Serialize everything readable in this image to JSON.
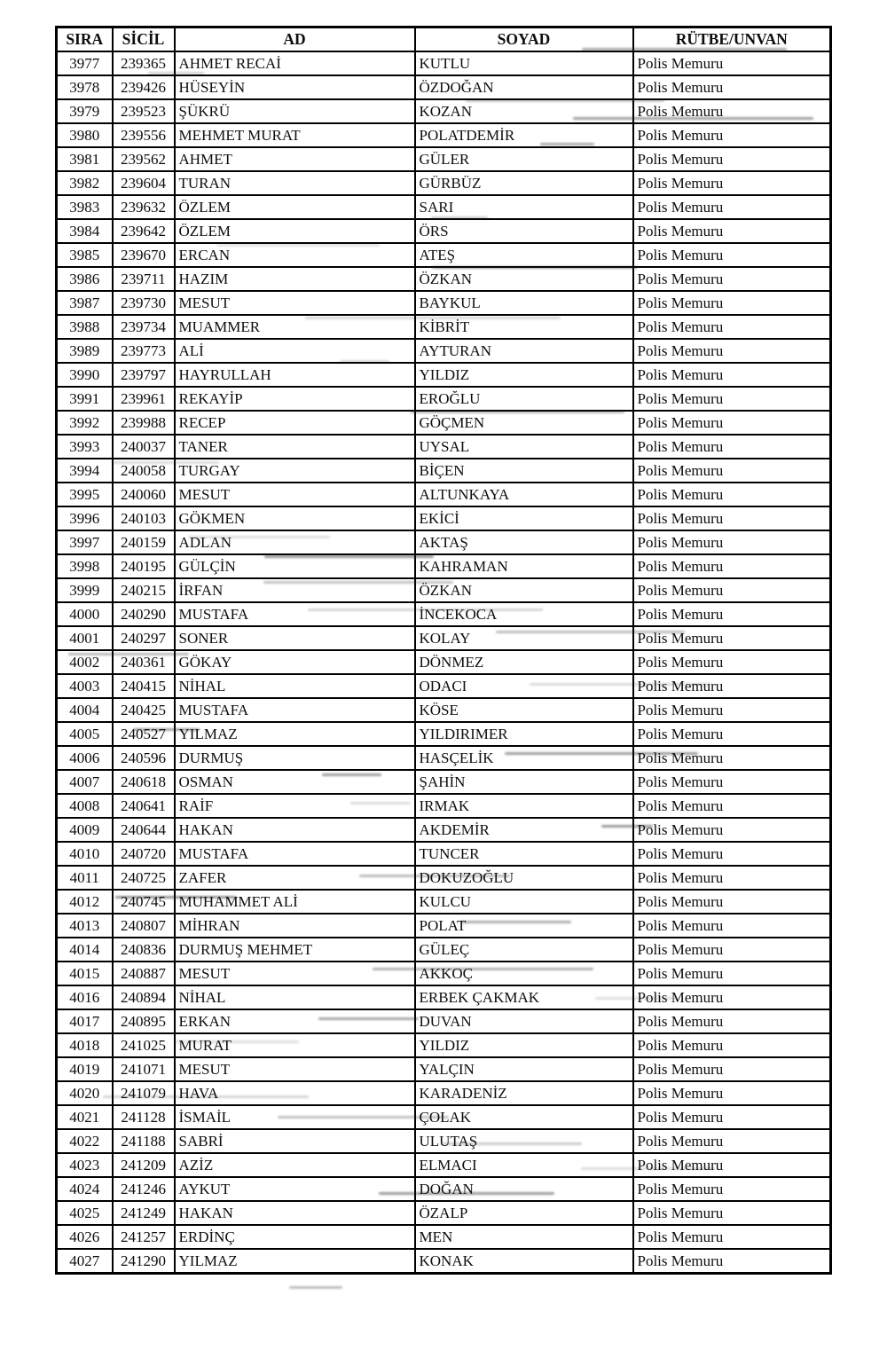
{
  "colors": {
    "border": "#000000",
    "text": "#0d0d0d",
    "background": "#ffffff"
  },
  "table": {
    "headers": [
      "SIRA",
      "SİCİL",
      "AD",
      "SOYAD",
      "RÜTBE/UNVAN"
    ],
    "rows": [
      [
        "3977",
        "239365",
        "AHMET RECAİ",
        "KUTLU",
        "Polis Memuru"
      ],
      [
        "3978",
        "239426",
        "HÜSEYİN",
        "ÖZDOĞAN",
        "Polis Memuru"
      ],
      [
        "3979",
        "239523",
        "ŞÜKRÜ",
        "KOZAN",
        "Polis Memuru"
      ],
      [
        "3980",
        "239556",
        "MEHMET MURAT",
        "POLATDEMİR",
        "Polis Memuru"
      ],
      [
        "3981",
        "239562",
        "AHMET",
        "GÜLER",
        "Polis Memuru"
      ],
      [
        "3982",
        "239604",
        "TURAN",
        "GÜRBÜZ",
        "Polis Memuru"
      ],
      [
        "3983",
        "239632",
        "ÖZLEM",
        "SARI",
        "Polis Memuru"
      ],
      [
        "3984",
        "239642",
        "ÖZLEM",
        "ÖRS",
        "Polis Memuru"
      ],
      [
        "3985",
        "239670",
        "ERCAN",
        "ATEŞ",
        "Polis Memuru"
      ],
      [
        "3986",
        "239711",
        "HAZIM",
        "ÖZKAN",
        "Polis Memuru"
      ],
      [
        "3987",
        "239730",
        "MESUT",
        "BAYKUL",
        "Polis Memuru"
      ],
      [
        "3988",
        "239734",
        "MUAMMER",
        "KİBRİT",
        "Polis Memuru"
      ],
      [
        "3989",
        "239773",
        "ALİ",
        "AYTURAN",
        "Polis Memuru"
      ],
      [
        "3990",
        "239797",
        "HAYRULLAH",
        "YILDIZ",
        "Polis Memuru"
      ],
      [
        "3991",
        "239961",
        "REKAYİP",
        "EROĞLU",
        "Polis Memuru"
      ],
      [
        "3992",
        "239988",
        "RECEP",
        "GÖÇMEN",
        "Polis Memuru"
      ],
      [
        "3993",
        "240037",
        "TANER",
        "UYSAL",
        "Polis Memuru"
      ],
      [
        "3994",
        "240058",
        "TURGAY",
        "BİÇEN",
        "Polis Memuru"
      ],
      [
        "3995",
        "240060",
        "MESUT",
        "ALTUNKAYA",
        "Polis Memuru"
      ],
      [
        "3996",
        "240103",
        "GÖKMEN",
        "EKİCİ",
        "Polis Memuru"
      ],
      [
        "3997",
        "240159",
        "ADLAN",
        "AKTAŞ",
        "Polis Memuru"
      ],
      [
        "3998",
        "240195",
        "GÜLÇİN",
        "KAHRAMAN",
        "Polis Memuru"
      ],
      [
        "3999",
        "240215",
        "İRFAN",
        "ÖZKAN",
        "Polis Memuru"
      ],
      [
        "4000",
        "240290",
        "MUSTAFA",
        "İNCEKOCA",
        "Polis Memuru"
      ],
      [
        "4001",
        "240297",
        "SONER",
        "KOLAY",
        "Polis Memuru"
      ],
      [
        "4002",
        "240361",
        "GÖKAY",
        "DÖNMEZ",
        "Polis Memuru"
      ],
      [
        "4003",
        "240415",
        "NİHAL",
        "ODACI",
        "Polis Memuru"
      ],
      [
        "4004",
        "240425",
        "MUSTAFA",
        "KÖSE",
        "Polis Memuru"
      ],
      [
        "4005",
        "240527",
        "YILMAZ",
        "YILDIRIMER",
        "Polis Memuru"
      ],
      [
        "4006",
        "240596",
        "DURMUŞ",
        "HASÇELİK",
        "Polis Memuru"
      ],
      [
        "4007",
        "240618",
        "OSMAN",
        "ŞAHİN",
        "Polis Memuru"
      ],
      [
        "4008",
        "240641",
        "RAİF",
        "IRMAK",
        "Polis Memuru"
      ],
      [
        "4009",
        "240644",
        "HAKAN",
        "AKDEMİR",
        "Polis Memuru"
      ],
      [
        "4010",
        "240720",
        "MUSTAFA",
        "TUNCER",
        "Polis Memuru"
      ],
      [
        "4011",
        "240725",
        "ZAFER",
        "DOKUZOĞLU",
        "Polis Memuru"
      ],
      [
        "4012",
        "240745",
        "MUHAMMET ALİ",
        "KULCU",
        "Polis Memuru"
      ],
      [
        "4013",
        "240807",
        "MİHRAN",
        "POLAT",
        "Polis Memuru"
      ],
      [
        "4014",
        "240836",
        "DURMUŞ MEHMET",
        "GÜLEÇ",
        "Polis Memuru"
      ],
      [
        "4015",
        "240887",
        "MESUT",
        "AKKOÇ",
        "Polis Memuru"
      ],
      [
        "4016",
        "240894",
        "NİHAL",
        "ERBEK ÇAKMAK",
        "Polis Memuru"
      ],
      [
        "4017",
        "240895",
        "ERKAN",
        "DUVAN",
        "Polis Memuru"
      ],
      [
        "4018",
        "241025",
        "MURAT",
        "YILDIZ",
        "Polis Memuru"
      ],
      [
        "4019",
        "241071",
        "MESUT",
        "YALÇIN",
        "Polis Memuru"
      ],
      [
        "4020",
        "241079",
        "HAVA",
        "KARADENİZ",
        "Polis Memuru"
      ],
      [
        "4021",
        "241128",
        "İSMAİL",
        "ÇOLAK",
        "Polis Memuru"
      ],
      [
        "4022",
        "241188",
        "SABRİ",
        "ULUTAŞ",
        "Polis Memuru"
      ],
      [
        "4023",
        "241209",
        "AZİZ",
        "ELMACI",
        "Polis Memuru"
      ],
      [
        "4024",
        "241246",
        "AYKUT",
        "DOĞAN",
        "Polis Memuru"
      ],
      [
        "4025",
        "241249",
        "HAKAN",
        "ÖZALP",
        "Polis Memuru"
      ],
      [
        "4026",
        "241257",
        "ERDİNÇ",
        "MEN",
        "Polis Memuru"
      ],
      [
        "4027",
        "241290",
        "YILMAZ",
        "KONAK",
        "Polis Memuru"
      ]
    ]
  }
}
